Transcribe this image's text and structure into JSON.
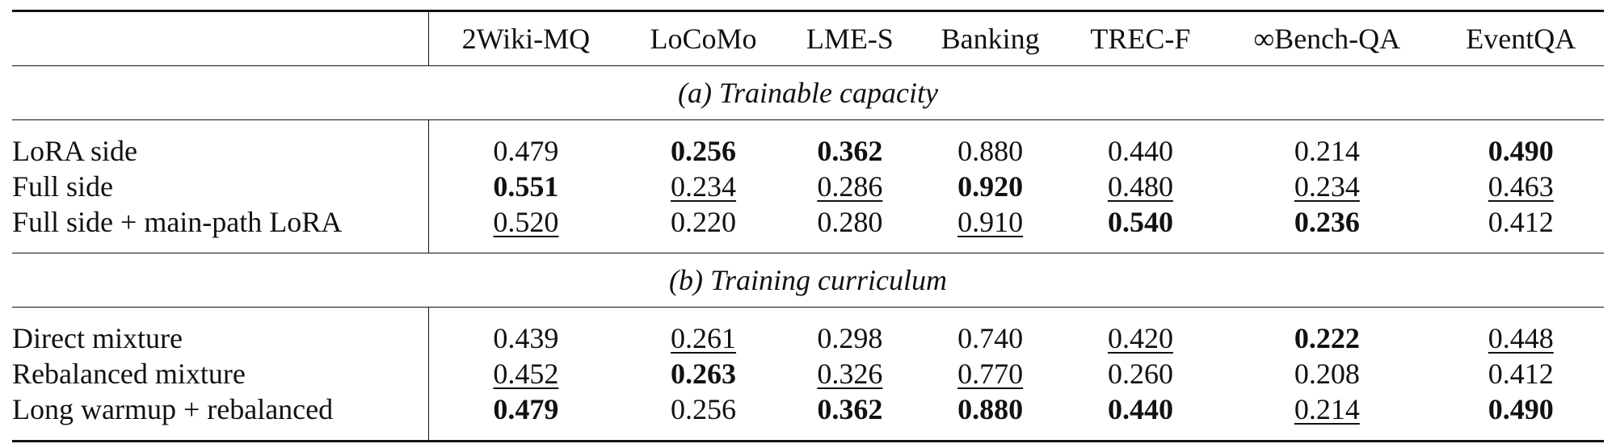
{
  "table": {
    "columns": [
      "2Wiki-MQ",
      "LoCoMo",
      "LME-S",
      "Banking",
      "TREC-F",
      "∞Bench-QA",
      "EventQA"
    ],
    "sections": [
      {
        "title": "(a) Trainable capacity",
        "rows": [
          {
            "label": "LoRA side",
            "cells": [
              {
                "value": "0.479",
                "style": "plain"
              },
              {
                "value": "0.256",
                "style": "bold"
              },
              {
                "value": "0.362",
                "style": "bold"
              },
              {
                "value": "0.880",
                "style": "plain"
              },
              {
                "value": "0.440",
                "style": "plain"
              },
              {
                "value": "0.214",
                "style": "plain"
              },
              {
                "value": "0.490",
                "style": "bold"
              }
            ]
          },
          {
            "label": "Full side",
            "cells": [
              {
                "value": "0.551",
                "style": "bold"
              },
              {
                "value": "0.234",
                "style": "underline"
              },
              {
                "value": "0.286",
                "style": "underline"
              },
              {
                "value": "0.920",
                "style": "bold"
              },
              {
                "value": "0.480",
                "style": "underline"
              },
              {
                "value": "0.234",
                "style": "underline"
              },
              {
                "value": "0.463",
                "style": "underline"
              }
            ]
          },
          {
            "label": "Full side + main-path LoRA",
            "cells": [
              {
                "value": "0.520",
                "style": "underline"
              },
              {
                "value": "0.220",
                "style": "plain"
              },
              {
                "value": "0.280",
                "style": "plain"
              },
              {
                "value": "0.910",
                "style": "underline"
              },
              {
                "value": "0.540",
                "style": "bold"
              },
              {
                "value": "0.236",
                "style": "bold"
              },
              {
                "value": "0.412",
                "style": "plain"
              }
            ]
          }
        ]
      },
      {
        "title": "(b) Training curriculum",
        "rows": [
          {
            "label": "Direct mixture",
            "cells": [
              {
                "value": "0.439",
                "style": "plain"
              },
              {
                "value": "0.261",
                "style": "underline"
              },
              {
                "value": "0.298",
                "style": "plain"
              },
              {
                "value": "0.740",
                "style": "plain"
              },
              {
                "value": "0.420",
                "style": "underline"
              },
              {
                "value": "0.222",
                "style": "bold"
              },
              {
                "value": "0.448",
                "style": "underline"
              }
            ]
          },
          {
            "label": "Rebalanced mixture",
            "cells": [
              {
                "value": "0.452",
                "style": "underline"
              },
              {
                "value": "0.263",
                "style": "bold"
              },
              {
                "value": "0.326",
                "style": "underline"
              },
              {
                "value": "0.770",
                "style": "underline"
              },
              {
                "value": "0.260",
                "style": "plain"
              },
              {
                "value": "0.208",
                "style": "plain"
              },
              {
                "value": "0.412",
                "style": "plain"
              }
            ]
          },
          {
            "label": "Long warmup + rebalanced",
            "cells": [
              {
                "value": "0.479",
                "style": "bold"
              },
              {
                "value": "0.256",
                "style": "plain"
              },
              {
                "value": "0.362",
                "style": "bold"
              },
              {
                "value": "0.880",
                "style": "bold"
              },
              {
                "value": "0.440",
                "style": "bold"
              },
              {
                "value": "0.214",
                "style": "underline"
              },
              {
                "value": "0.490",
                "style": "bold"
              }
            ]
          }
        ]
      }
    ]
  }
}
